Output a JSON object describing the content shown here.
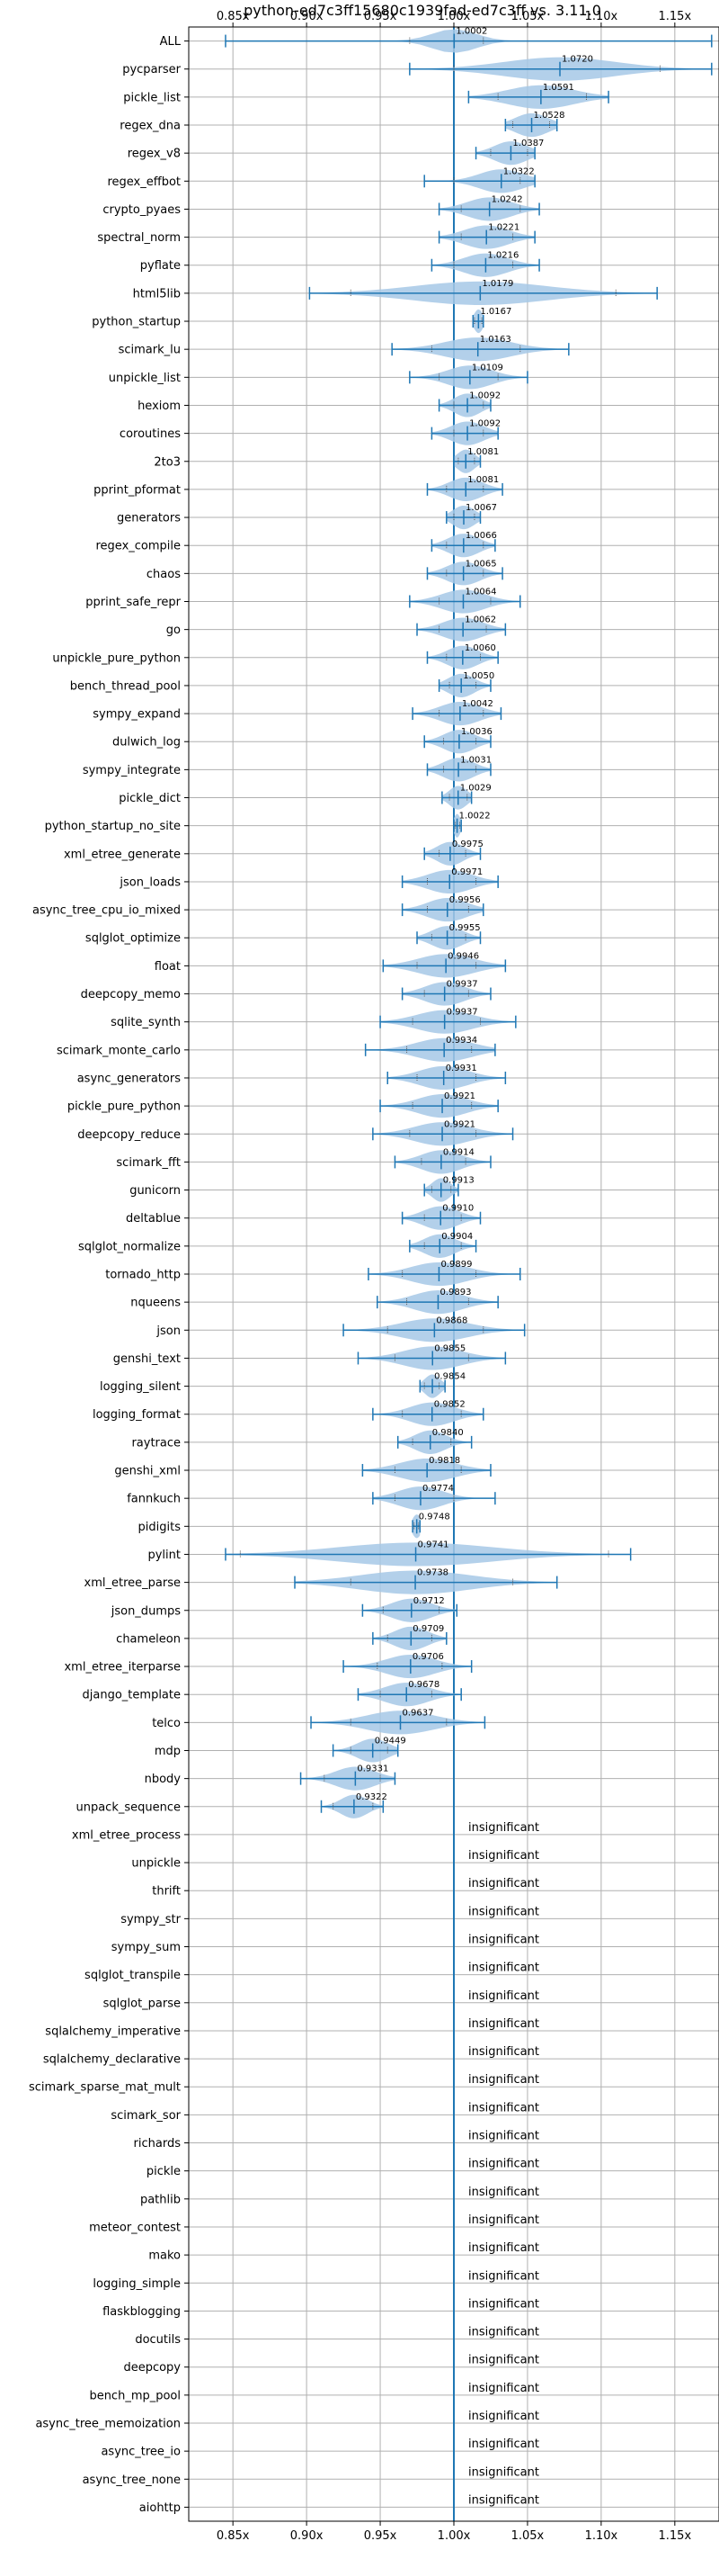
{
  "chart_data": {
    "type": "violin",
    "title": "python-ed7c3ff15680c1939fad-ed7c3ff vs. 3.11.0",
    "xlim": [
      0.82,
      1.18
    ],
    "x_ticks": [
      0.85,
      0.9,
      0.95,
      1.0,
      1.05,
      1.1,
      1.15
    ],
    "x_tick_labels": [
      "0.85x",
      "0.90x",
      "0.95x",
      "1.00x",
      "1.05x",
      "1.10x",
      "1.15x"
    ],
    "reference_line": 1.0,
    "grid": true,
    "colors": {
      "accent": "#1f77b4",
      "fill": "#a6c8e6",
      "grid": "#b0b0b0"
    },
    "insignificant_label": "insignificant",
    "benchmarks": [
      {
        "name": "ALL",
        "label": "1.0002",
        "mean": 1.0002,
        "min": 0.845,
        "max": 1.175,
        "q1": 0.97,
        "q3": 1.02,
        "spread": 0.02
      },
      {
        "name": "pycparser",
        "label": "1.0720",
        "mean": 1.072,
        "min": 0.97,
        "max": 1.175,
        "q1": 1.0,
        "q3": 1.14,
        "spread": 0.05
      },
      {
        "name": "pickle_list",
        "label": "1.0591",
        "mean": 1.0591,
        "min": 1.01,
        "max": 1.105,
        "q1": 1.03,
        "q3": 1.09,
        "spread": 0.03
      },
      {
        "name": "regex_dna",
        "label": "1.0528",
        "mean": 1.0528,
        "min": 1.035,
        "max": 1.07,
        "q1": 1.04,
        "q3": 1.065,
        "spread": 0.015
      },
      {
        "name": "regex_v8",
        "label": "1.0387",
        "mean": 1.0387,
        "min": 1.015,
        "max": 1.055,
        "q1": 1.025,
        "q3": 1.05,
        "spread": 0.015
      },
      {
        "name": "regex_effbot",
        "label": "1.0322",
        "mean": 1.0322,
        "min": 0.98,
        "max": 1.055,
        "q1": 1.0,
        "q3": 1.045,
        "spread": 0.02
      },
      {
        "name": "crypto_pyaes",
        "label": "1.0242",
        "mean": 1.0242,
        "min": 0.99,
        "max": 1.058,
        "q1": 1.005,
        "q3": 1.045,
        "spread": 0.02
      },
      {
        "name": "spectral_norm",
        "label": "1.0221",
        "mean": 1.0221,
        "min": 0.99,
        "max": 1.055,
        "q1": 1.005,
        "q3": 1.04,
        "spread": 0.02
      },
      {
        "name": "pyflate",
        "label": "1.0216",
        "mean": 1.0216,
        "min": 0.985,
        "max": 1.058,
        "q1": 1.0,
        "q3": 1.04,
        "spread": 0.02
      },
      {
        "name": "html5lib",
        "label": "1.0179",
        "mean": 1.0179,
        "min": 0.902,
        "max": 1.138,
        "q1": 0.93,
        "q3": 1.11,
        "spread": 0.06
      },
      {
        "name": "python_startup",
        "label": "1.0167",
        "mean": 1.0167,
        "min": 1.013,
        "max": 1.02,
        "q1": 1.014,
        "q3": 1.019,
        "spread": 0.004
      },
      {
        "name": "scimark_lu",
        "label": "1.0163",
        "mean": 1.0163,
        "min": 0.958,
        "max": 1.078,
        "q1": 0.985,
        "q3": 1.045,
        "spread": 0.03
      },
      {
        "name": "unpickle_list",
        "label": "1.0109",
        "mean": 1.0109,
        "min": 0.97,
        "max": 1.05,
        "q1": 0.99,
        "q3": 1.03,
        "spread": 0.02
      },
      {
        "name": "hexiom",
        "label": "1.0092",
        "mean": 1.0092,
        "min": 0.99,
        "max": 1.025,
        "q1": 1.0,
        "q3": 1.02,
        "spread": 0.012
      },
      {
        "name": "coroutines",
        "label": "1.0092",
        "mean": 1.0092,
        "min": 0.985,
        "max": 1.03,
        "q1": 1.0,
        "q3": 1.02,
        "spread": 0.015
      },
      {
        "name": "2to3",
        "label": "1.0081",
        "mean": 1.0081,
        "min": 1.0,
        "max": 1.018,
        "q1": 1.003,
        "q3": 1.014,
        "spread": 0.008
      },
      {
        "name": "pprint_pformat",
        "label": "1.0081",
        "mean": 1.0081,
        "min": 0.982,
        "max": 1.033,
        "q1": 0.995,
        "q3": 1.02,
        "spread": 0.015
      },
      {
        "name": "generators",
        "label": "1.0067",
        "mean": 1.0067,
        "min": 0.995,
        "max": 1.018,
        "q1": 1.0,
        "q3": 1.014,
        "spread": 0.01
      },
      {
        "name": "regex_compile",
        "label": "1.0066",
        "mean": 1.0066,
        "min": 0.985,
        "max": 1.028,
        "q1": 0.995,
        "q3": 1.02,
        "spread": 0.014
      },
      {
        "name": "chaos",
        "label": "1.0065",
        "mean": 1.0065,
        "min": 0.982,
        "max": 1.033,
        "q1": 0.995,
        "q3": 1.02,
        "spread": 0.015
      },
      {
        "name": "pprint_safe_repr",
        "label": "1.0064",
        "mean": 1.0064,
        "min": 0.97,
        "max": 1.045,
        "q1": 0.99,
        "q3": 1.025,
        "spread": 0.02
      },
      {
        "name": "go",
        "label": "1.0062",
        "mean": 1.0062,
        "min": 0.975,
        "max": 1.035,
        "q1": 0.99,
        "q3": 1.022,
        "spread": 0.018
      },
      {
        "name": "unpickle_pure_python",
        "label": "1.0060",
        "mean": 1.006,
        "min": 0.982,
        "max": 1.03,
        "q1": 0.995,
        "q3": 1.018,
        "spread": 0.014
      },
      {
        "name": "bench_thread_pool",
        "label": "1.0050",
        "mean": 1.005,
        "min": 0.99,
        "max": 1.025,
        "q1": 0.997,
        "q3": 1.015,
        "spread": 0.012
      },
      {
        "name": "sympy_expand",
        "label": "1.0042",
        "mean": 1.0042,
        "min": 0.972,
        "max": 1.032,
        "q1": 0.99,
        "q3": 1.02,
        "spread": 0.018
      },
      {
        "name": "dulwich_log",
        "label": "1.0036",
        "mean": 1.0036,
        "min": 0.98,
        "max": 1.025,
        "q1": 0.993,
        "q3": 1.015,
        "spread": 0.014
      },
      {
        "name": "sympy_integrate",
        "label": "1.0031",
        "mean": 1.0031,
        "min": 0.982,
        "max": 1.025,
        "q1": 0.993,
        "q3": 1.015,
        "spread": 0.014
      },
      {
        "name": "pickle_dict",
        "label": "1.0029",
        "mean": 1.0029,
        "min": 0.992,
        "max": 1.012,
        "q1": 0.997,
        "q3": 1.009,
        "spread": 0.008
      },
      {
        "name": "python_startup_no_site",
        "label": "1.0022",
        "mean": 1.0022,
        "min": 1.0,
        "max": 1.005,
        "q1": 1.001,
        "q3": 1.004,
        "spread": 0.003
      },
      {
        "name": "xml_etree_generate",
        "label": "0.9975",
        "mean": 0.9975,
        "min": 0.98,
        "max": 1.018,
        "q1": 0.99,
        "q3": 1.008,
        "spread": 0.012
      },
      {
        "name": "json_loads",
        "label": "0.9971",
        "mean": 0.9971,
        "min": 0.965,
        "max": 1.03,
        "q1": 0.982,
        "q3": 1.015,
        "spread": 0.02
      },
      {
        "name": "async_tree_cpu_io_mixed",
        "label": "0.9956",
        "mean": 0.9956,
        "min": 0.965,
        "max": 1.02,
        "q1": 0.982,
        "q3": 1.01,
        "spread": 0.018
      },
      {
        "name": "sqlglot_optimize",
        "label": "0.9955",
        "mean": 0.9955,
        "min": 0.975,
        "max": 1.018,
        "q1": 0.985,
        "q3": 1.008,
        "spread": 0.014
      },
      {
        "name": "float",
        "label": "0.9946",
        "mean": 0.9946,
        "min": 0.952,
        "max": 1.035,
        "q1": 0.975,
        "q3": 1.015,
        "spread": 0.025
      },
      {
        "name": "deepcopy_memo",
        "label": "0.9937",
        "mean": 0.9937,
        "min": 0.965,
        "max": 1.025,
        "q1": 0.98,
        "q3": 1.01,
        "spread": 0.018
      },
      {
        "name": "sqlite_synth",
        "label": "0.9937",
        "mean": 0.9937,
        "min": 0.95,
        "max": 1.042,
        "q1": 0.972,
        "q3": 1.018,
        "spread": 0.025
      },
      {
        "name": "scimark_monte_carlo",
        "label": "0.9934",
        "mean": 0.9934,
        "min": 0.94,
        "max": 1.028,
        "q1": 0.968,
        "q3": 1.012,
        "spread": 0.025
      },
      {
        "name": "async_generators",
        "label": "0.9931",
        "mean": 0.9931,
        "min": 0.955,
        "max": 1.035,
        "q1": 0.975,
        "q3": 1.015,
        "spread": 0.022
      },
      {
        "name": "pickle_pure_python",
        "label": "0.9921",
        "mean": 0.9921,
        "min": 0.95,
        "max": 1.03,
        "q1": 0.972,
        "q3": 1.012,
        "spread": 0.022
      },
      {
        "name": "deepcopy_reduce",
        "label": "0.9921",
        "mean": 0.9921,
        "min": 0.945,
        "max": 1.04,
        "q1": 0.97,
        "q3": 1.015,
        "spread": 0.025
      },
      {
        "name": "scimark_fft",
        "label": "0.9914",
        "mean": 0.9914,
        "min": 0.96,
        "max": 1.025,
        "q1": 0.978,
        "q3": 1.008,
        "spread": 0.018
      },
      {
        "name": "gunicorn",
        "label": "0.9913",
        "mean": 0.9913,
        "min": 0.98,
        "max": 1.003,
        "q1": 0.985,
        "q3": 0.998,
        "spread": 0.008
      },
      {
        "name": "deltablue",
        "label": "0.9910",
        "mean": 0.991,
        "min": 0.965,
        "max": 1.018,
        "q1": 0.98,
        "q3": 1.005,
        "spread": 0.016
      },
      {
        "name": "sqlglot_normalize",
        "label": "0.9904",
        "mean": 0.9904,
        "min": 0.97,
        "max": 1.015,
        "q1": 0.98,
        "q3": 1.005,
        "spread": 0.014
      },
      {
        "name": "tornado_http",
        "label": "0.9899",
        "mean": 0.9899,
        "min": 0.942,
        "max": 1.045,
        "q1": 0.965,
        "q3": 1.015,
        "spread": 0.025
      },
      {
        "name": "nqueens",
        "label": "0.9893",
        "mean": 0.9893,
        "min": 0.948,
        "max": 1.03,
        "q1": 0.968,
        "q3": 1.01,
        "spread": 0.022
      },
      {
        "name": "json",
        "label": "0.9868",
        "mean": 0.9868,
        "min": 0.925,
        "max": 1.048,
        "q1": 0.955,
        "q3": 1.02,
        "spread": 0.03
      },
      {
        "name": "genshi_text",
        "label": "0.9855",
        "mean": 0.9855,
        "min": 0.935,
        "max": 1.035,
        "q1": 0.96,
        "q3": 1.01,
        "spread": 0.026
      },
      {
        "name": "logging_silent",
        "label": "0.9854",
        "mean": 0.9854,
        "min": 0.977,
        "max": 0.994,
        "q1": 0.98,
        "q3": 0.99,
        "spread": 0.007
      },
      {
        "name": "logging_format",
        "label": "0.9852",
        "mean": 0.9852,
        "min": 0.945,
        "max": 1.02,
        "q1": 0.965,
        "q3": 1.005,
        "spread": 0.02
      },
      {
        "name": "raytrace",
        "label": "0.9840",
        "mean": 0.984,
        "min": 0.962,
        "max": 1.012,
        "q1": 0.972,
        "q3": 0.998,
        "spread": 0.014
      },
      {
        "name": "genshi_xml",
        "label": "0.9818",
        "mean": 0.9818,
        "min": 0.938,
        "max": 1.025,
        "q1": 0.96,
        "q3": 1.005,
        "spread": 0.025
      },
      {
        "name": "fannkuch",
        "label": "0.9774",
        "mean": 0.9774,
        "min": 0.945,
        "max": 1.028,
        "q1": 0.96,
        "q3": 1.0,
        "spread": 0.02
      },
      {
        "name": "pidigits",
        "label": "0.9748",
        "mean": 0.9748,
        "min": 0.972,
        "max": 0.977,
        "q1": 0.973,
        "q3": 0.976,
        "spread": 0.004
      },
      {
        "name": "pylint",
        "label": "0.9741",
        "mean": 0.9741,
        "min": 0.845,
        "max": 1.12,
        "q1": 0.855,
        "q3": 1.105,
        "spread": 0.07
      },
      {
        "name": "xml_etree_parse",
        "label": "0.9738",
        "mean": 0.9738,
        "min": 0.892,
        "max": 1.07,
        "q1": 0.93,
        "q3": 1.04,
        "spread": 0.05
      },
      {
        "name": "json_dumps",
        "label": "0.9712",
        "mean": 0.9712,
        "min": 0.938,
        "max": 1.002,
        "q1": 0.952,
        "q3": 0.99,
        "spread": 0.018
      },
      {
        "name": "chameleon",
        "label": "0.9709",
        "mean": 0.9709,
        "min": 0.945,
        "max": 0.995,
        "q1": 0.955,
        "q3": 0.985,
        "spread": 0.015
      },
      {
        "name": "xml_etree_iterparse",
        "label": "0.9706",
        "mean": 0.9706,
        "min": 0.925,
        "max": 1.012,
        "q1": 0.948,
        "q3": 0.992,
        "spread": 0.022
      },
      {
        "name": "django_template",
        "label": "0.9678",
        "mean": 0.9678,
        "min": 0.935,
        "max": 1.005,
        "q1": 0.95,
        "q3": 0.985,
        "spread": 0.02
      },
      {
        "name": "telco",
        "label": "0.9637",
        "mean": 0.9637,
        "min": 0.903,
        "max": 1.021,
        "q1": 0.93,
        "q3": 0.995,
        "spread": 0.03
      },
      {
        "name": "mdp",
        "label": "0.9449",
        "mean": 0.9449,
        "min": 0.918,
        "max": 0.962,
        "q1": 0.93,
        "q3": 0.955,
        "spread": 0.014
      },
      {
        "name": "nbody",
        "label": "0.9331",
        "mean": 0.9331,
        "min": 0.896,
        "max": 0.96,
        "q1": 0.912,
        "q3": 0.95,
        "spread": 0.018
      },
      {
        "name": "unpack_sequence",
        "label": "0.9322",
        "mean": 0.9322,
        "min": 0.91,
        "max": 0.952,
        "q1": 0.918,
        "q3": 0.945,
        "spread": 0.012
      }
    ],
    "insignificant": [
      "xml_etree_process",
      "unpickle",
      "thrift",
      "sympy_str",
      "sympy_sum",
      "sqlglot_transpile",
      "sqlglot_parse",
      "sqlalchemy_imperative",
      "sqlalchemy_declarative",
      "scimark_sparse_mat_mult",
      "scimark_sor",
      "richards",
      "pickle",
      "pathlib",
      "meteor_contest",
      "mako",
      "logging_simple",
      "flaskblogging",
      "docutils",
      "deepcopy",
      "bench_mp_pool",
      "async_tree_memoization",
      "async_tree_io",
      "async_tree_none",
      "aiohttp"
    ]
  }
}
